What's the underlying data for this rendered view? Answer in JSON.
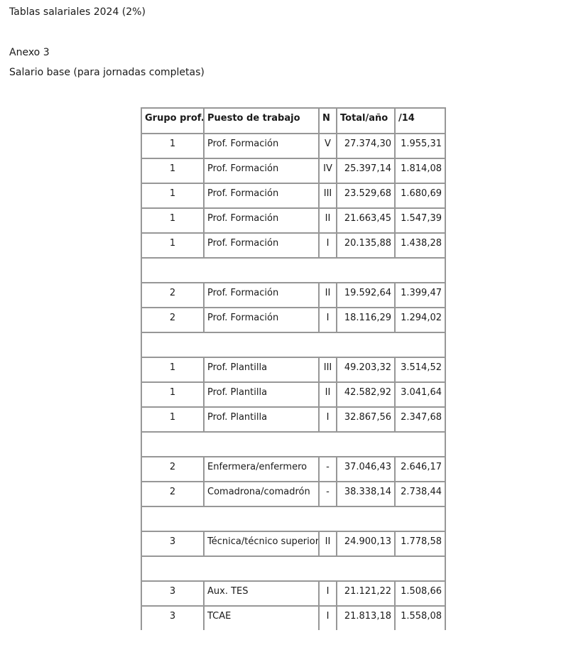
{
  "document": {
    "title": "Tablas salariales 2024 (2%)",
    "annex_label": "Anexo 3",
    "subtitle": "Salario base (para jornadas completas)"
  },
  "table": {
    "headers": [
      "Grupo prof.",
      "Puesto de trabajo",
      "N",
      "Total/año",
      "/14"
    ],
    "rows": [
      {
        "type": "data",
        "grupo": "1",
        "puesto": "Prof. Formación",
        "nivel": "V",
        "total_ano": "27.374,30",
        "por14": "1.955,31"
      },
      {
        "type": "data",
        "grupo": "1",
        "puesto": "Prof. Formación",
        "nivel": "IV",
        "total_ano": "25.397,14",
        "por14": "1.814,08"
      },
      {
        "type": "data",
        "grupo": "1",
        "puesto": "Prof. Formación",
        "nivel": "III",
        "total_ano": "23.529,68",
        "por14": "1.680,69"
      },
      {
        "type": "data",
        "grupo": "1",
        "puesto": "Prof. Formación",
        "nivel": "II",
        "total_ano": "21.663,45",
        "por14": "1.547,39"
      },
      {
        "type": "data",
        "grupo": "1",
        "puesto": "Prof. Formación",
        "nivel": "I",
        "total_ano": "20.135,88",
        "por14": "1.438,28"
      },
      {
        "type": "spacer"
      },
      {
        "type": "data",
        "grupo": "2",
        "puesto": "Prof. Formación",
        "nivel": "II",
        "total_ano": "19.592,64",
        "por14": "1.399,47"
      },
      {
        "type": "data",
        "grupo": "2",
        "puesto": "Prof. Formación",
        "nivel": "I",
        "total_ano": "18.116,29",
        "por14": "1.294,02"
      },
      {
        "type": "spacer"
      },
      {
        "type": "data",
        "grupo": "1",
        "puesto": "Prof. Plantilla",
        "nivel": "III",
        "total_ano": "49.203,32",
        "por14": "3.514,52"
      },
      {
        "type": "data",
        "grupo": "1",
        "puesto": "Prof. Plantilla",
        "nivel": "II",
        "total_ano": "42.582,92",
        "por14": "3.041,64"
      },
      {
        "type": "data",
        "grupo": "1",
        "puesto": "Prof. Plantilla",
        "nivel": "I",
        "total_ano": "32.867,56",
        "por14": "2.347,68"
      },
      {
        "type": "spacer"
      },
      {
        "type": "data",
        "grupo": "2",
        "puesto": "Enfermera/enfermero",
        "nivel": "-",
        "total_ano": "37.046,43",
        "por14": "2.646,17"
      },
      {
        "type": "data",
        "grupo": "2",
        "puesto": "Comadrona/comadrón",
        "nivel": "-",
        "total_ano": "38.338,14",
        "por14": "2.738,44"
      },
      {
        "type": "spacer"
      },
      {
        "type": "data",
        "grupo": "3",
        "puesto": "Técnica/técnico superior",
        "nivel": "II",
        "total_ano": "24.900,13",
        "por14": "1.778,58"
      },
      {
        "type": "spacer"
      },
      {
        "type": "data",
        "grupo": "3",
        "puesto": "Aux. TES",
        "nivel": "I",
        "total_ano": "21.121,22",
        "por14": "1.508,66"
      },
      {
        "type": "data",
        "grupo": "3",
        "puesto": "TCAE",
        "nivel": "I",
        "total_ano": "21.813,18",
        "por14": "1.558,08"
      }
    ]
  },
  "colors": {
    "border": "#979797",
    "text": "#1a1a1a",
    "background": "#ffffff"
  }
}
